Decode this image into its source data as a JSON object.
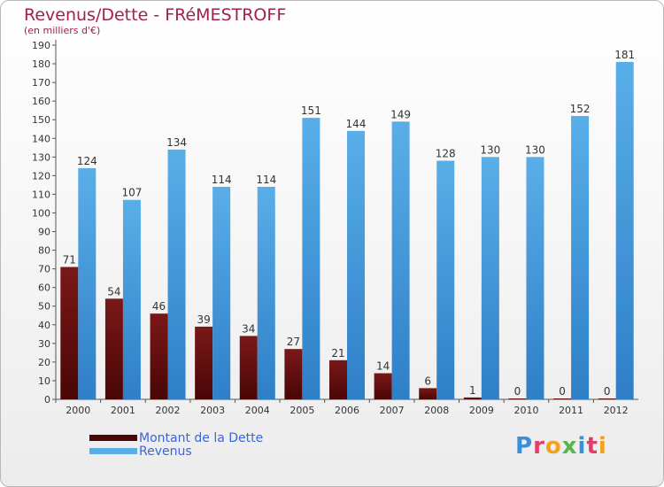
{
  "chart_data": {
    "type": "bar",
    "title": "Revenus/Dette - FRéMESTROFF",
    "subtitle": "(en milliers d'€)",
    "categories": [
      "2000",
      "2001",
      "2002",
      "2003",
      "2004",
      "2005",
      "2006",
      "2007",
      "2008",
      "2009",
      "2010",
      "2011",
      "2012"
    ],
    "series": [
      {
        "name": "Montant de la Dette",
        "values": [
          71,
          54,
          46,
          39,
          34,
          27,
          21,
          14,
          6,
          1,
          0,
          0,
          0
        ]
      },
      {
        "name": "Revenus",
        "values": [
          124,
          107,
          134,
          114,
          114,
          151,
          144,
          149,
          128,
          130,
          130,
          152,
          181
        ]
      }
    ],
    "ylim": [
      0,
      190
    ],
    "ytick_step": 10,
    "grid": false,
    "legend_position": "bottom-left"
  },
  "colors": {
    "dette_top": "#7a1818",
    "dette_bottom": "#4a0606",
    "revenus_top": "#5aaee8",
    "revenus_bottom": "#2e7fc7",
    "title": "#a3204a",
    "legend_text": "#3b66d9"
  },
  "logo": {
    "text": "Proxiti"
  }
}
